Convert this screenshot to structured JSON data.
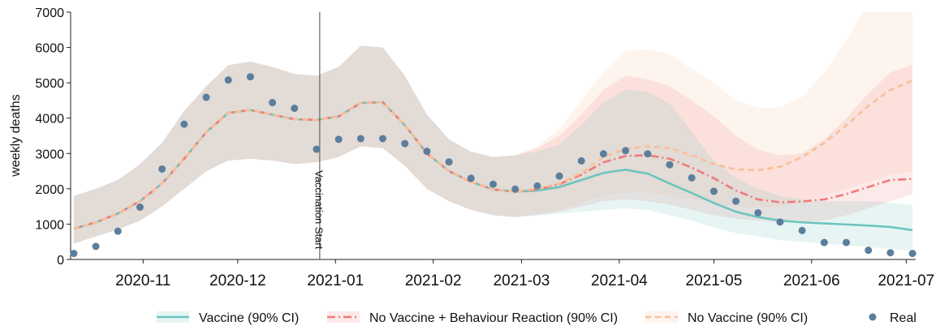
{
  "chart_data": {
    "type": "line",
    "ylabel": "weekly deaths",
    "xlim": [
      "2020-10-09",
      "2021-07-04"
    ],
    "ylim": [
      0,
      7000
    ],
    "yticks": [
      0,
      1000,
      2000,
      3000,
      4000,
      5000,
      6000,
      7000
    ],
    "xticks": [
      {
        "value": "2020-11-01",
        "label": "2020-11"
      },
      {
        "value": "2020-12-01",
        "label": "2020-12"
      },
      {
        "value": "2021-01-01",
        "label": "2021-01"
      },
      {
        "value": "2021-02-01",
        "label": "2021-02"
      },
      {
        "value": "2021-03-01",
        "label": "2021-03"
      },
      {
        "value": "2021-04-01",
        "label": "2021-04"
      },
      {
        "value": "2021-05-01",
        "label": "2021-05"
      },
      {
        "value": "2021-06-01",
        "label": "2021-06"
      },
      {
        "value": "2021-07-01",
        "label": "2021-07"
      }
    ],
    "x": [
      "2020-10-10",
      "2020-10-17",
      "2020-10-24",
      "2020-10-31",
      "2020-11-07",
      "2020-11-14",
      "2020-11-21",
      "2020-11-28",
      "2020-12-05",
      "2020-12-12",
      "2020-12-19",
      "2020-12-26",
      "2021-01-02",
      "2021-01-09",
      "2021-01-16",
      "2021-01-23",
      "2021-01-30",
      "2021-02-06",
      "2021-02-13",
      "2021-02-20",
      "2021-02-27",
      "2021-03-06",
      "2021-03-13",
      "2021-03-20",
      "2021-03-27",
      "2021-04-03",
      "2021-04-10",
      "2021-04-17",
      "2021-04-24",
      "2021-05-01",
      "2021-05-08",
      "2021-05-15",
      "2021-05-22",
      "2021-05-29",
      "2021-06-05",
      "2021-06-12",
      "2021-06-19",
      "2021-06-26",
      "2021-07-03"
    ],
    "annotation": {
      "text": "Vaccination Start",
      "x": "2020-12-27"
    },
    "legend": "bottom",
    "series": [
      {
        "name": "Vaccine (90% CI)",
        "color": "#6cc5bf",
        "linestyle": "solid",
        "values": [
          870,
          1050,
          1300,
          1650,
          2150,
          2850,
          3600,
          4150,
          4230,
          4100,
          3970,
          3950,
          4050,
          4430,
          4450,
          3800,
          3000,
          2500,
          2200,
          1980,
          1920,
          1950,
          2050,
          2250,
          2450,
          2540,
          2430,
          2150,
          1880,
          1600,
          1350,
          1200,
          1100,
          1050,
          1020,
          990,
          960,
          920,
          830
        ],
        "lower": [
          450,
          650,
          850,
          1100,
          1500,
          2000,
          2500,
          2800,
          2850,
          2800,
          2700,
          2750,
          2900,
          3200,
          3150,
          2650,
          2000,
          1650,
          1400,
          1250,
          1200,
          1250,
          1300,
          1350,
          1400,
          1450,
          1400,
          1250,
          1100,
          900,
          750,
          650,
          550,
          500,
          450,
          400,
          350,
          300,
          250
        ],
        "upper": [
          1800,
          2000,
          2250,
          2700,
          3300,
          4200,
          4900,
          5500,
          5600,
          5450,
          5250,
          5200,
          5450,
          6050,
          6000,
          5200,
          4100,
          3400,
          3050,
          2900,
          2950,
          3050,
          3250,
          3800,
          4450,
          4800,
          4750,
          4400,
          3600,
          2800,
          2300,
          2000,
          1800,
          1700,
          1650,
          1650,
          1650,
          1600,
          1550
        ]
      },
      {
        "name": "No Vaccine + Behaviour Reaction (90% CI)",
        "color": "#f07a7a",
        "linestyle": "dashdot",
        "values": [
          870,
          1050,
          1300,
          1650,
          2150,
          2850,
          3600,
          4150,
          4230,
          4100,
          3970,
          3950,
          4050,
          4430,
          4450,
          3800,
          3000,
          2500,
          2200,
          1980,
          1920,
          1980,
          2130,
          2400,
          2750,
          2930,
          2950,
          2850,
          2600,
          2300,
          1950,
          1700,
          1620,
          1640,
          1700,
          1850,
          2050,
          2250,
          2280
        ],
        "lower": [
          450,
          650,
          850,
          1100,
          1500,
          2000,
          2500,
          2800,
          2850,
          2800,
          2700,
          2750,
          2900,
          3200,
          3150,
          2650,
          2000,
          1650,
          1400,
          1250,
          1200,
          1250,
          1350,
          1500,
          1650,
          1700,
          1650,
          1550,
          1400,
          1250,
          1150,
          1100,
          1050,
          1050,
          1100,
          1250,
          1450,
          1650,
          1850
        ],
        "upper": [
          1800,
          2000,
          2250,
          2700,
          3300,
          4200,
          4900,
          5500,
          5600,
          5450,
          5250,
          5200,
          5450,
          6050,
          6000,
          5200,
          4100,
          3400,
          3050,
          2900,
          2950,
          3150,
          3500,
          4100,
          4800,
          5200,
          5100,
          4900,
          4500,
          4050,
          3500,
          3100,
          2950,
          3000,
          3400,
          4000,
          4700,
          5300,
          5500
        ]
      },
      {
        "name": "No Vaccine (90% CI)",
        "color": "#f9bf98",
        "linestyle": "dashed",
        "values": [
          870,
          1050,
          1300,
          1650,
          2150,
          2850,
          3600,
          4150,
          4230,
          4100,
          3970,
          3950,
          4050,
          4430,
          4450,
          3800,
          3000,
          2500,
          2200,
          1980,
          1920,
          2000,
          2150,
          2450,
          2900,
          3130,
          3200,
          3150,
          2950,
          2700,
          2550,
          2530,
          2620,
          2900,
          3300,
          3800,
          4350,
          4800,
          5070
        ],
        "lower": [
          450,
          650,
          850,
          1100,
          1500,
          2000,
          2500,
          2800,
          2850,
          2800,
          2700,
          2750,
          2900,
          3200,
          3150,
          2650,
          2000,
          1650,
          1400,
          1250,
          1200,
          1300,
          1400,
          1600,
          1800,
          1900,
          1900,
          1800,
          1700,
          1600,
          1500,
          1450,
          1500,
          1600,
          1800,
          2000,
          2200,
          2400,
          2500
        ],
        "upper": [
          1800,
          2000,
          2250,
          2700,
          3300,
          4200,
          4900,
          5500,
          5600,
          5450,
          5250,
          5200,
          5450,
          6050,
          6000,
          5200,
          4100,
          3400,
          3050,
          2900,
          2950,
          3200,
          3700,
          4500,
          5300,
          5900,
          5950,
          5800,
          5400,
          5000,
          4500,
          4300,
          4300,
          4600,
          5300,
          6200,
          7300,
          7700,
          8000
        ]
      },
      {
        "name": "Real",
        "color": "#5b7e9c",
        "type": "scatter",
        "values": [
          170,
          370,
          800,
          1480,
          2560,
          3830,
          4590,
          5080,
          5170,
          4440,
          4280,
          3120,
          3400,
          3420,
          3420,
          3280,
          3060,
          2760,
          2300,
          2130,
          1990,
          2080,
          2360,
          2790,
          2990,
          3080,
          2990,
          2680,
          2310,
          1930,
          1650,
          1320,
          1060,
          820,
          480,
          480,
          260,
          190,
          170
        ]
      }
    ]
  }
}
